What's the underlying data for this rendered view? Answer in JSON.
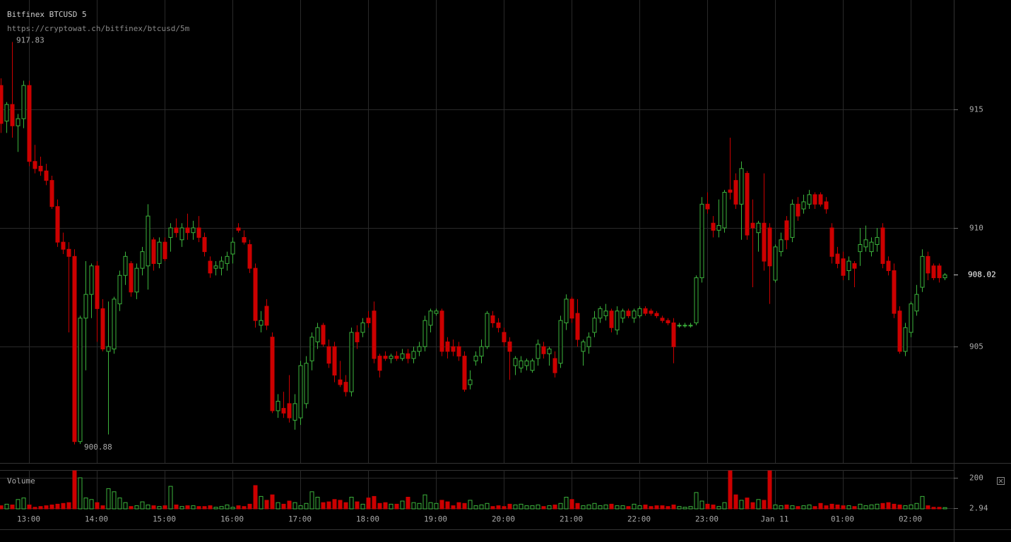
{
  "chart_data": [
    {
      "type": "candlestick",
      "title": "Bitfinex BTCUSD 5",
      "subtitle": "https://cryptowat.ch/bitfinex/btcusd/5m",
      "up_color": "#3cb33c",
      "down_color": "#cc0000",
      "grid": true,
      "ylim": [
        900.1,
        919.6
      ],
      "yticks": [
        905,
        910,
        915
      ],
      "open": [
        916,
        914.5,
        915.2,
        914.3,
        914.6,
        916,
        912.8,
        912.6,
        912.4,
        912,
        910.9,
        909.4,
        909.1,
        908.8,
        901,
        906.2,
        907.2,
        908.4,
        906.6,
        904.8,
        904.9,
        906.8,
        908,
        908.5,
        907.3,
        908.3,
        908.4,
        909.5,
        908.5,
        909.4,
        909.6,
        910,
        909.5,
        910,
        909.8,
        910,
        909.6,
        908.6,
        908.3,
        908.3,
        908.5,
        908.9,
        910,
        909.6,
        909.3,
        908.3,
        905.9,
        906.7,
        905.4,
        902.3,
        902.4,
        902.6,
        901.9,
        902,
        902.6,
        904.4,
        905.2,
        905.9,
        905,
        905,
        903.6,
        903.5,
        903.1,
        905.6,
        905.6,
        906.2,
        906.5,
        904.6,
        904.6,
        904.5,
        904.6,
        904.5,
        904.7,
        904.5,
        904.8,
        905,
        905.9,
        906.4,
        906.5,
        905.2,
        905,
        905,
        904.6,
        903.4,
        904.4,
        904.6,
        905,
        906.3,
        906,
        905.6,
        905.2,
        904.2,
        904.1,
        904.2,
        904,
        904.5,
        905,
        904.7,
        904.5,
        904.3,
        906,
        907,
        906.4,
        904.8,
        905,
        905.6,
        906.2,
        906.3,
        906.5,
        905.7,
        906.2,
        906.5,
        906.2,
        906.3,
        906.6,
        906.5,
        906.4,
        906.2,
        906.1,
        906,
        905.9,
        905.9,
        905.9,
        906,
        907.9,
        911,
        910.2,
        909.9,
        910,
        911.6,
        912,
        911,
        912.3,
        910.2,
        909.8,
        910.2,
        910,
        907.8,
        909,
        910.3,
        909.6,
        911,
        910.8,
        911,
        911.4,
        911.4,
        911.1,
        910,
        908.9,
        908.7,
        908.2,
        908.5,
        909,
        909.2,
        909,
        909.3,
        910,
        908.6,
        908.2,
        906.5,
        904.8,
        905.6,
        906.5,
        907.5,
        908.8,
        908.4,
        908.4,
        907.9
      ],
      "high": [
        916.3,
        915.3,
        917.83,
        914.8,
        916.2,
        916.2,
        913.5,
        913,
        912.7,
        912.2,
        911.2,
        909.8,
        909.4,
        909.1,
        906.3,
        908.6,
        908.5,
        908.6,
        907,
        906.9,
        907.1,
        908.2,
        909,
        908.6,
        908.5,
        909.2,
        911,
        909.6,
        909.6,
        909.6,
        910.2,
        910.4,
        910.2,
        910.6,
        910.3,
        910.5,
        909.8,
        908.8,
        908.6,
        908.8,
        909,
        909.6,
        910.2,
        909.9,
        909.5,
        908.5,
        906.5,
        907,
        905.6,
        903,
        903.1,
        903.8,
        903,
        904.4,
        904.6,
        905.6,
        906,
        906,
        905.3,
        905.2,
        904.4,
        903.8,
        905.8,
        905.9,
        906.2,
        906.5,
        906.9,
        904.7,
        904.8,
        904.7,
        904.8,
        904.9,
        904.9,
        905,
        905.2,
        906.3,
        906.6,
        906.6,
        906.6,
        905.4,
        905.3,
        905.2,
        904.8,
        904,
        904.8,
        905.3,
        906.5,
        906.5,
        906.2,
        905.8,
        905.4,
        904.6,
        904.6,
        904.5,
        904.5,
        905.3,
        905.2,
        905,
        904.8,
        906.3,
        907.2,
        907.1,
        907,
        905.3,
        905.6,
        906.5,
        906.7,
        906.8,
        906.6,
        906.7,
        906.6,
        906.6,
        906.6,
        906.7,
        906.7,
        906.6,
        906.5,
        906.3,
        906.2,
        906.2,
        906,
        906,
        906,
        908,
        911.3,
        911.5,
        910.5,
        911.2,
        911.6,
        913.8,
        912.3,
        912.8,
        912.4,
        911.2,
        910.3,
        912.3,
        910.2,
        909.3,
        909.8,
        910.5,
        911.2,
        911.3,
        911.4,
        911.6,
        911.5,
        911.5,
        911.3,
        910.2,
        909.2,
        909,
        908.8,
        908.6,
        910,
        910.1,
        909.6,
        910,
        910.2,
        908.8,
        908.5,
        906.7,
        906,
        906.9,
        907.6,
        909.1,
        909,
        908.5,
        908.5,
        908.1
      ],
      "low": [
        914,
        914,
        913.8,
        913.2,
        914.2,
        912.6,
        912.3,
        912.2,
        911.8,
        910.8,
        909.2,
        908.9,
        905.6,
        900.88,
        900.9,
        904,
        906.2,
        905.2,
        904.8,
        901.3,
        904.7,
        906.5,
        907.6,
        907.1,
        907,
        908,
        907.4,
        908.2,
        908.3,
        908.6,
        909,
        909.6,
        909.2,
        909.5,
        909.5,
        909.4,
        908.8,
        907.9,
        908,
        908,
        908.2,
        908.5,
        909.8,
        909.3,
        908.1,
        905.8,
        905.6,
        905.7,
        902.2,
        902,
        902,
        901.8,
        901.5,
        901.7,
        902.4,
        904,
        904.9,
        905,
        904.1,
        903.5,
        903.3,
        902.9,
        902.9,
        904.9,
        905.4,
        905.8,
        904.3,
        903.7,
        904.4,
        904.3,
        904.4,
        904.4,
        904.3,
        904.3,
        904.6,
        904.8,
        905.6,
        906.3,
        904.6,
        904.5,
        904.6,
        904.4,
        903.1,
        903.2,
        904.2,
        904.3,
        904.9,
        905.8,
        905.6,
        905,
        903.6,
        903.8,
        903.9,
        904,
        903.9,
        904.2,
        904.5,
        904.2,
        903.7,
        904.1,
        905.7,
        906,
        905,
        904.2,
        904.7,
        905.4,
        906,
        906.1,
        905.6,
        905.5,
        906,
        906.2,
        906,
        906.2,
        906.3,
        906.3,
        906.2,
        906,
        905.9,
        904.3,
        905.8,
        905.8,
        905.8,
        905.9,
        907.7,
        910.6,
        909.6,
        909.6,
        909.8,
        911.2,
        910.8,
        909.5,
        909.5,
        907.5,
        909,
        908.2,
        906.8,
        907.7,
        908.8,
        909.1,
        909.4,
        910.3,
        910.6,
        910.8,
        910.8,
        910.9,
        910.6,
        908.5,
        908.3,
        907.8,
        907.8,
        907.5,
        908.4,
        909,
        908.8,
        909,
        908.3,
        908,
        906.2,
        904.7,
        904.6,
        905.4,
        906.3,
        907.3,
        907.8,
        907.8,
        907.7,
        907.8
      ],
      "close": [
        914.4,
        915.2,
        914.3,
        914.6,
        916,
        912.8,
        912.5,
        912.4,
        912,
        910.9,
        909.4,
        909.1,
        908.8,
        901,
        906.2,
        907.2,
        908.4,
        906.6,
        904.9,
        905,
        907,
        908,
        908.8,
        907.3,
        908.3,
        909,
        910.5,
        908.5,
        909.4,
        908.7,
        910,
        909.8,
        910,
        909.8,
        910,
        909.6,
        909,
        908.1,
        908.4,
        908.6,
        908.8,
        909.4,
        909.9,
        909.4,
        908.3,
        906.1,
        906.1,
        905.9,
        902.3,
        902.7,
        902.2,
        902,
        902.6,
        904.2,
        904.3,
        905.4,
        905.8,
        905.1,
        904.3,
        903.8,
        903.4,
        903.1,
        905.6,
        905.2,
        906,
        906,
        904.5,
        904,
        904.5,
        904.6,
        904.5,
        904.7,
        904.5,
        904.8,
        905,
        906.1,
        906.5,
        906.5,
        904.8,
        904.8,
        904.8,
        904.6,
        903.2,
        903.6,
        904.6,
        905,
        906.4,
        906,
        905.8,
        905.2,
        904.8,
        904.5,
        904.4,
        904.4,
        904.4,
        905.1,
        904.7,
        904.9,
        903.9,
        906.1,
        907,
        906.2,
        905.3,
        905.2,
        905.4,
        906.2,
        906.6,
        906.5,
        905.8,
        906.5,
        906.5,
        906.3,
        906.5,
        906.6,
        906.4,
        906.4,
        906.3,
        906.1,
        906,
        905,
        905.9,
        905.9,
        905.9,
        907.9,
        911,
        910.8,
        909.9,
        910.1,
        911.5,
        911.5,
        911,
        912.5,
        909.7,
        910,
        910.2,
        908.6,
        908.4,
        909.2,
        909.5,
        909.5,
        911,
        910.5,
        911.1,
        911.4,
        911,
        911,
        910.8,
        908.8,
        908.5,
        908,
        908.6,
        908.3,
        909.3,
        909.5,
        909.4,
        909.6,
        908.5,
        908.2,
        906.4,
        904.8,
        905.8,
        906.8,
        907.2,
        908.8,
        908.1,
        907.9,
        907.9,
        908.02
      ]
    },
    {
      "type": "bar",
      "title": "Volume",
      "ylim": [
        0,
        250
      ],
      "yticks": [
        200,
        2.94
      ],
      "categories": [
        null,
        null,
        null,
        null,
        null,
        "13:00",
        null,
        null,
        null,
        null,
        null,
        null,
        null,
        null,
        null,
        null,
        null,
        "14:00",
        null,
        null,
        null,
        null,
        null,
        null,
        null,
        null,
        null,
        null,
        null,
        "15:00",
        null,
        null,
        null,
        null,
        null,
        null,
        null,
        null,
        null,
        null,
        null,
        "16:00",
        null,
        null,
        null,
        null,
        null,
        null,
        null,
        null,
        null,
        null,
        null,
        "17:00",
        null,
        null,
        null,
        null,
        null,
        null,
        null,
        null,
        null,
        null,
        null,
        "18:00",
        null,
        null,
        null,
        null,
        null,
        null,
        null,
        null,
        null,
        null,
        null,
        "19:00",
        null,
        null,
        null,
        null,
        null,
        null,
        null,
        null,
        null,
        null,
        null,
        "20:00",
        null,
        null,
        null,
        null,
        null,
        null,
        null,
        null,
        null,
        null,
        null,
        "21:00",
        null,
        null,
        null,
        null,
        null,
        null,
        null,
        null,
        null,
        null,
        null,
        "22:00",
        null,
        null,
        null,
        null,
        null,
        null,
        null,
        null,
        null,
        null,
        null,
        "23:00",
        null,
        null,
        null,
        null,
        null,
        null,
        null,
        null,
        null,
        null,
        null,
        "Jan 11",
        null,
        null,
        null,
        null,
        null,
        null,
        null,
        null,
        null,
        null,
        null,
        "01:00",
        null,
        null,
        null,
        null,
        null,
        null,
        null,
        null,
        null,
        null,
        null,
        "02:00",
        null,
        null,
        null,
        null,
        null,
        null
      ],
      "values": [
        20,
        30,
        25,
        60,
        70,
        25,
        10,
        15,
        20,
        25,
        30,
        35,
        40,
        245,
        200,
        70,
        60,
        40,
        20,
        130,
        110,
        70,
        40,
        15,
        20,
        45,
        25,
        20,
        15,
        20,
        145,
        25,
        15,
        20,
        20,
        15,
        15,
        20,
        10,
        15,
        25,
        10,
        20,
        15,
        30,
        150,
        80,
        55,
        90,
        40,
        30,
        50,
        40,
        20,
        35,
        110,
        75,
        40,
        45,
        60,
        55,
        40,
        75,
        45,
        30,
        70,
        80,
        35,
        40,
        30,
        30,
        50,
        75,
        40,
        35,
        90,
        40,
        35,
        55,
        45,
        20,
        40,
        35,
        55,
        20,
        25,
        35,
        15,
        20,
        15,
        30,
        25,
        30,
        20,
        20,
        25,
        15,
        20,
        25,
        35,
        75,
        60,
        35,
        20,
        25,
        35,
        20,
        25,
        30,
        20,
        20,
        15,
        30,
        20,
        25,
        15,
        20,
        20,
        15,
        25,
        15,
        10,
        15,
        105,
        50,
        30,
        25,
        15,
        40,
        245,
        90,
        55,
        70,
        40,
        60,
        55,
        245,
        25,
        20,
        25,
        20,
        15,
        20,
        25,
        15,
        35,
        20,
        30,
        25,
        20,
        20,
        15,
        30,
        20,
        25,
        30,
        35,
        40,
        30,
        25,
        20,
        25,
        35,
        80,
        20,
        10,
        10,
        8
      ]
    }
  ]
}
